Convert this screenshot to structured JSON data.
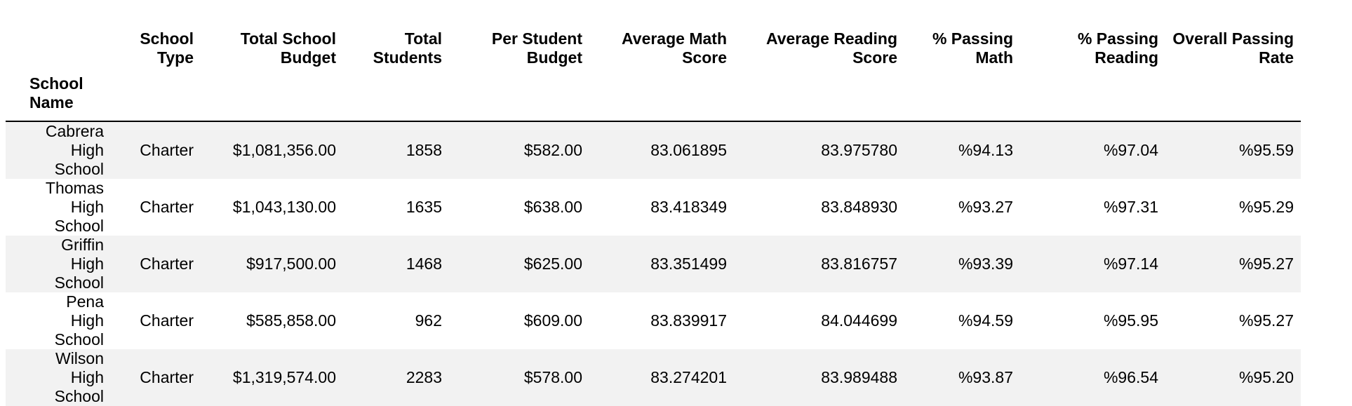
{
  "table": {
    "index_name": "School Name",
    "columns": [
      "School Type",
      "Total School Budget",
      "Total Students",
      "Per Student Budget",
      "Average Math Score",
      "Average Reading Score",
      "% Passing Math",
      "% Passing Reading",
      "Overall Passing Rate"
    ],
    "rows": [
      {
        "name": "Cabrera High School",
        "cells": [
          "Charter",
          "$1,081,356.00",
          "1858",
          "$582.00",
          "83.061895",
          "83.975780",
          "%94.13",
          "%97.04",
          "%95.59"
        ]
      },
      {
        "name": "Thomas High School",
        "cells": [
          "Charter",
          "$1,043,130.00",
          "1635",
          "$638.00",
          "83.418349",
          "83.848930",
          "%93.27",
          "%97.31",
          "%95.29"
        ]
      },
      {
        "name": "Griffin High School",
        "cells": [
          "Charter",
          "$917,500.00",
          "1468",
          "$625.00",
          "83.351499",
          "83.816757",
          "%93.39",
          "%97.14",
          "%95.27"
        ]
      },
      {
        "name": "Pena High School",
        "cells": [
          "Charter",
          "$585,858.00",
          "962",
          "$609.00",
          "83.839917",
          "84.044699",
          "%94.59",
          "%95.95",
          "%95.27"
        ]
      },
      {
        "name": "Wilson High School",
        "cells": [
          "Charter",
          "$1,319,574.00",
          "2283",
          "$578.00",
          "83.274201",
          "83.989488",
          "%93.87",
          "%96.54",
          "%95.20"
        ]
      }
    ]
  }
}
